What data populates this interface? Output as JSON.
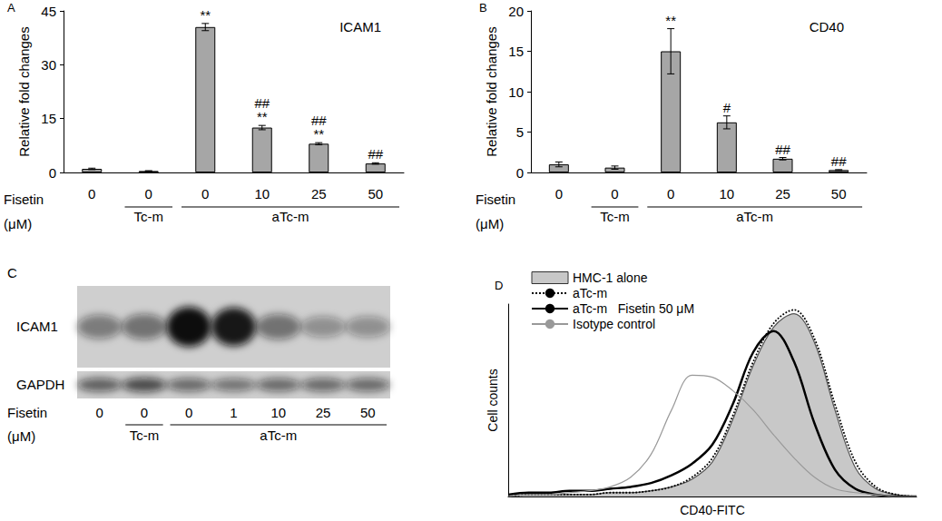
{
  "chart_data": [
    {
      "panel": "A",
      "type": "bar",
      "title": "ICAM1",
      "ylabel": "Relative fold changes",
      "xlabel": "Fisetin\n(μM)",
      "categories": [
        "0",
        "0",
        "0",
        "10",
        "25",
        "50"
      ],
      "groups": [
        {
          "label": "Tc-m",
          "from": 1,
          "to": 1
        },
        {
          "label": "aTc-m",
          "from": 2,
          "to": 5
        }
      ],
      "values": [
        1,
        0.4,
        40.5,
        12.5,
        8,
        2.5
      ],
      "errors": [
        0.2,
        0.1,
        1,
        0.6,
        0.3,
        0.2
      ],
      "significance": [
        [],
        [],
        [
          "**"
        ],
        [
          "##",
          "**"
        ],
        [
          "##",
          "**"
        ],
        [
          "##"
        ]
      ],
      "color": "#a6a6a6",
      "ylim": [
        0,
        45
      ],
      "yticks": [
        0,
        15,
        30,
        45
      ],
      "grid": false
    },
    {
      "panel": "B",
      "type": "bar",
      "title": "CD40",
      "ylabel": "Relative fold changes",
      "xlabel": "Fisetin\n(μM)",
      "categories": [
        "0",
        "0",
        "0",
        "10",
        "25",
        "50"
      ],
      "groups": [
        {
          "label": "Tc-m",
          "from": 1,
          "to": 1
        },
        {
          "label": "aTc-m",
          "from": 2,
          "to": 5
        }
      ],
      "values": [
        1,
        0.6,
        15,
        6.2,
        1.7,
        0.3
      ],
      "errors": [
        0.3,
        0.2,
        2.8,
        0.8,
        0.15,
        0.05
      ],
      "significance": [
        [],
        [],
        [
          "**"
        ],
        [
          "#"
        ],
        [
          "##"
        ],
        [
          "##"
        ]
      ],
      "color": "#a6a6a6",
      "ylim": [
        0,
        20
      ],
      "yticks": [
        0,
        5,
        10,
        15,
        20
      ],
      "grid": false
    },
    {
      "panel": "C",
      "type": "blot",
      "xlabel": "Fisetin\n(μM)",
      "categories": [
        "0",
        "0",
        "0",
        "1",
        "10",
        "25",
        "50"
      ],
      "groups": [
        {
          "label": "Tc-m",
          "from": 1,
          "to": 1
        },
        {
          "label": "aTc-m",
          "from": 2,
          "to": 6
        }
      ],
      "rows": [
        {
          "label": "ICAM1",
          "intensities": [
            0.45,
            0.5,
            1,
            0.95,
            0.5,
            0.35,
            0.35
          ]
        },
        {
          "label": "GAPDH",
          "intensities": [
            0.6,
            0.7,
            0.55,
            0.5,
            0.55,
            0.55,
            0.55
          ]
        }
      ]
    },
    {
      "panel": "D",
      "type": "line",
      "xlabel": "CD40-FITC",
      "ylabel": "Cell counts",
      "x": [
        0,
        5,
        10,
        15,
        20,
        25,
        30,
        35,
        40,
        45,
        50,
        55,
        60,
        65,
        70,
        75,
        80,
        85,
        90,
        95,
        100
      ],
      "series": [
        {
          "name": "HMC-1 alone",
          "type": "area",
          "color": "#c8c8c8",
          "line_style": "solid",
          "values": [
            0,
            1,
            1,
            1,
            1,
            2,
            2,
            3,
            5,
            9,
            18,
            40,
            68,
            88,
            95,
            80,
            45,
            15,
            4,
            1,
            0
          ]
        },
        {
          "name": "aTc-m",
          "type": "line",
          "color": "#000000",
          "line_style": "dotted",
          "values": [
            0,
            1,
            1,
            1,
            1,
            2,
            2,
            3,
            5,
            10,
            20,
            42,
            70,
            90,
            97,
            82,
            48,
            18,
            5,
            1,
            0
          ]
        },
        {
          "name": "aTc-m   Fisetin 50 μM",
          "type": "line",
          "color": "#000000",
          "line_style": "thick",
          "values": [
            1,
            2,
            2,
            3,
            3,
            4,
            5,
            7,
            11,
            17,
            27,
            48,
            75,
            86,
            70,
            38,
            14,
            4,
            1,
            0,
            0
          ]
        },
        {
          "name": "Isotype control",
          "type": "line",
          "color": "#999999",
          "line_style": "solid",
          "values": [
            0,
            1,
            1,
            2,
            3,
            5,
            10,
            22,
            45,
            63,
            62,
            55,
            45,
            32,
            20,
            10,
            4,
            2,
            1,
            0,
            0
          ]
        }
      ],
      "xlim": [
        0,
        100
      ],
      "ylim": [
        0,
        100
      ],
      "tick_labels": false,
      "grid": false,
      "legend": "top-left"
    }
  ]
}
